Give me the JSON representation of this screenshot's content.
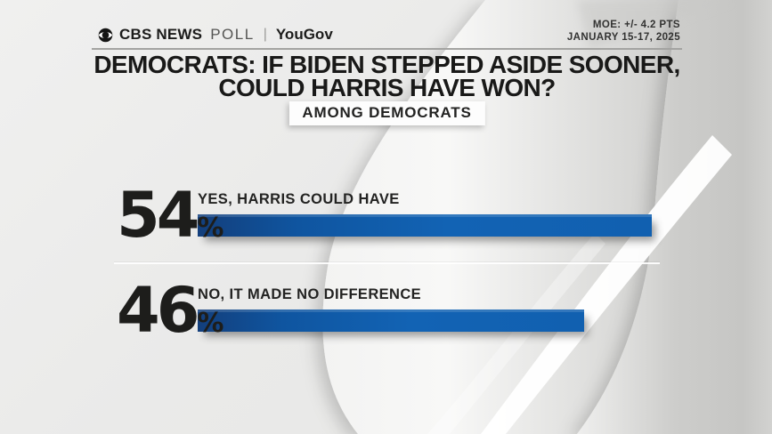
{
  "header": {
    "brand_cbs": "CBS NEWS",
    "brand_poll": "POLL",
    "brand_separator": "|",
    "brand_partner": "YouGov",
    "meta_line1": "MOE: +/- 4.2 PTS",
    "meta_line2": "JANUARY 15-17, 2025"
  },
  "title_line1": "DEMOCRATS: IF BIDEN STEPPED ASIDE SOONER,",
  "title_line2": "COULD HARRIS HAVE WON?",
  "subtitle_badge": "AMONG DEMOCRATS",
  "chart_data": {
    "type": "bar",
    "orientation": "horizontal",
    "title": "DEMOCRATS: IF BIDEN STEPPED ASIDE SOONER, COULD HARRIS HAVE WON?",
    "subtitle": "AMONG DEMOCRATS",
    "categories": [
      "YES, HARRIS COULD HAVE",
      "NO, IT MADE NO DIFFERENCE"
    ],
    "values": [
      54,
      46
    ],
    "unit": "%",
    "xlim": [
      0,
      100
    ],
    "grid": false,
    "legend": false,
    "bar_color": "#1263b4",
    "value_label_position": "left-of-bar",
    "category_label_position": "above-bar"
  },
  "colors": {
    "background": "#eaeae9",
    "bar_blue": "#1263b4",
    "bar_blue_dark": "#133f7c",
    "text_dark": "#1c1c1b",
    "rule_gray": "#a3a3a1",
    "badge_background": "#fdfdfd",
    "ribbon_white": "#ffffff"
  }
}
